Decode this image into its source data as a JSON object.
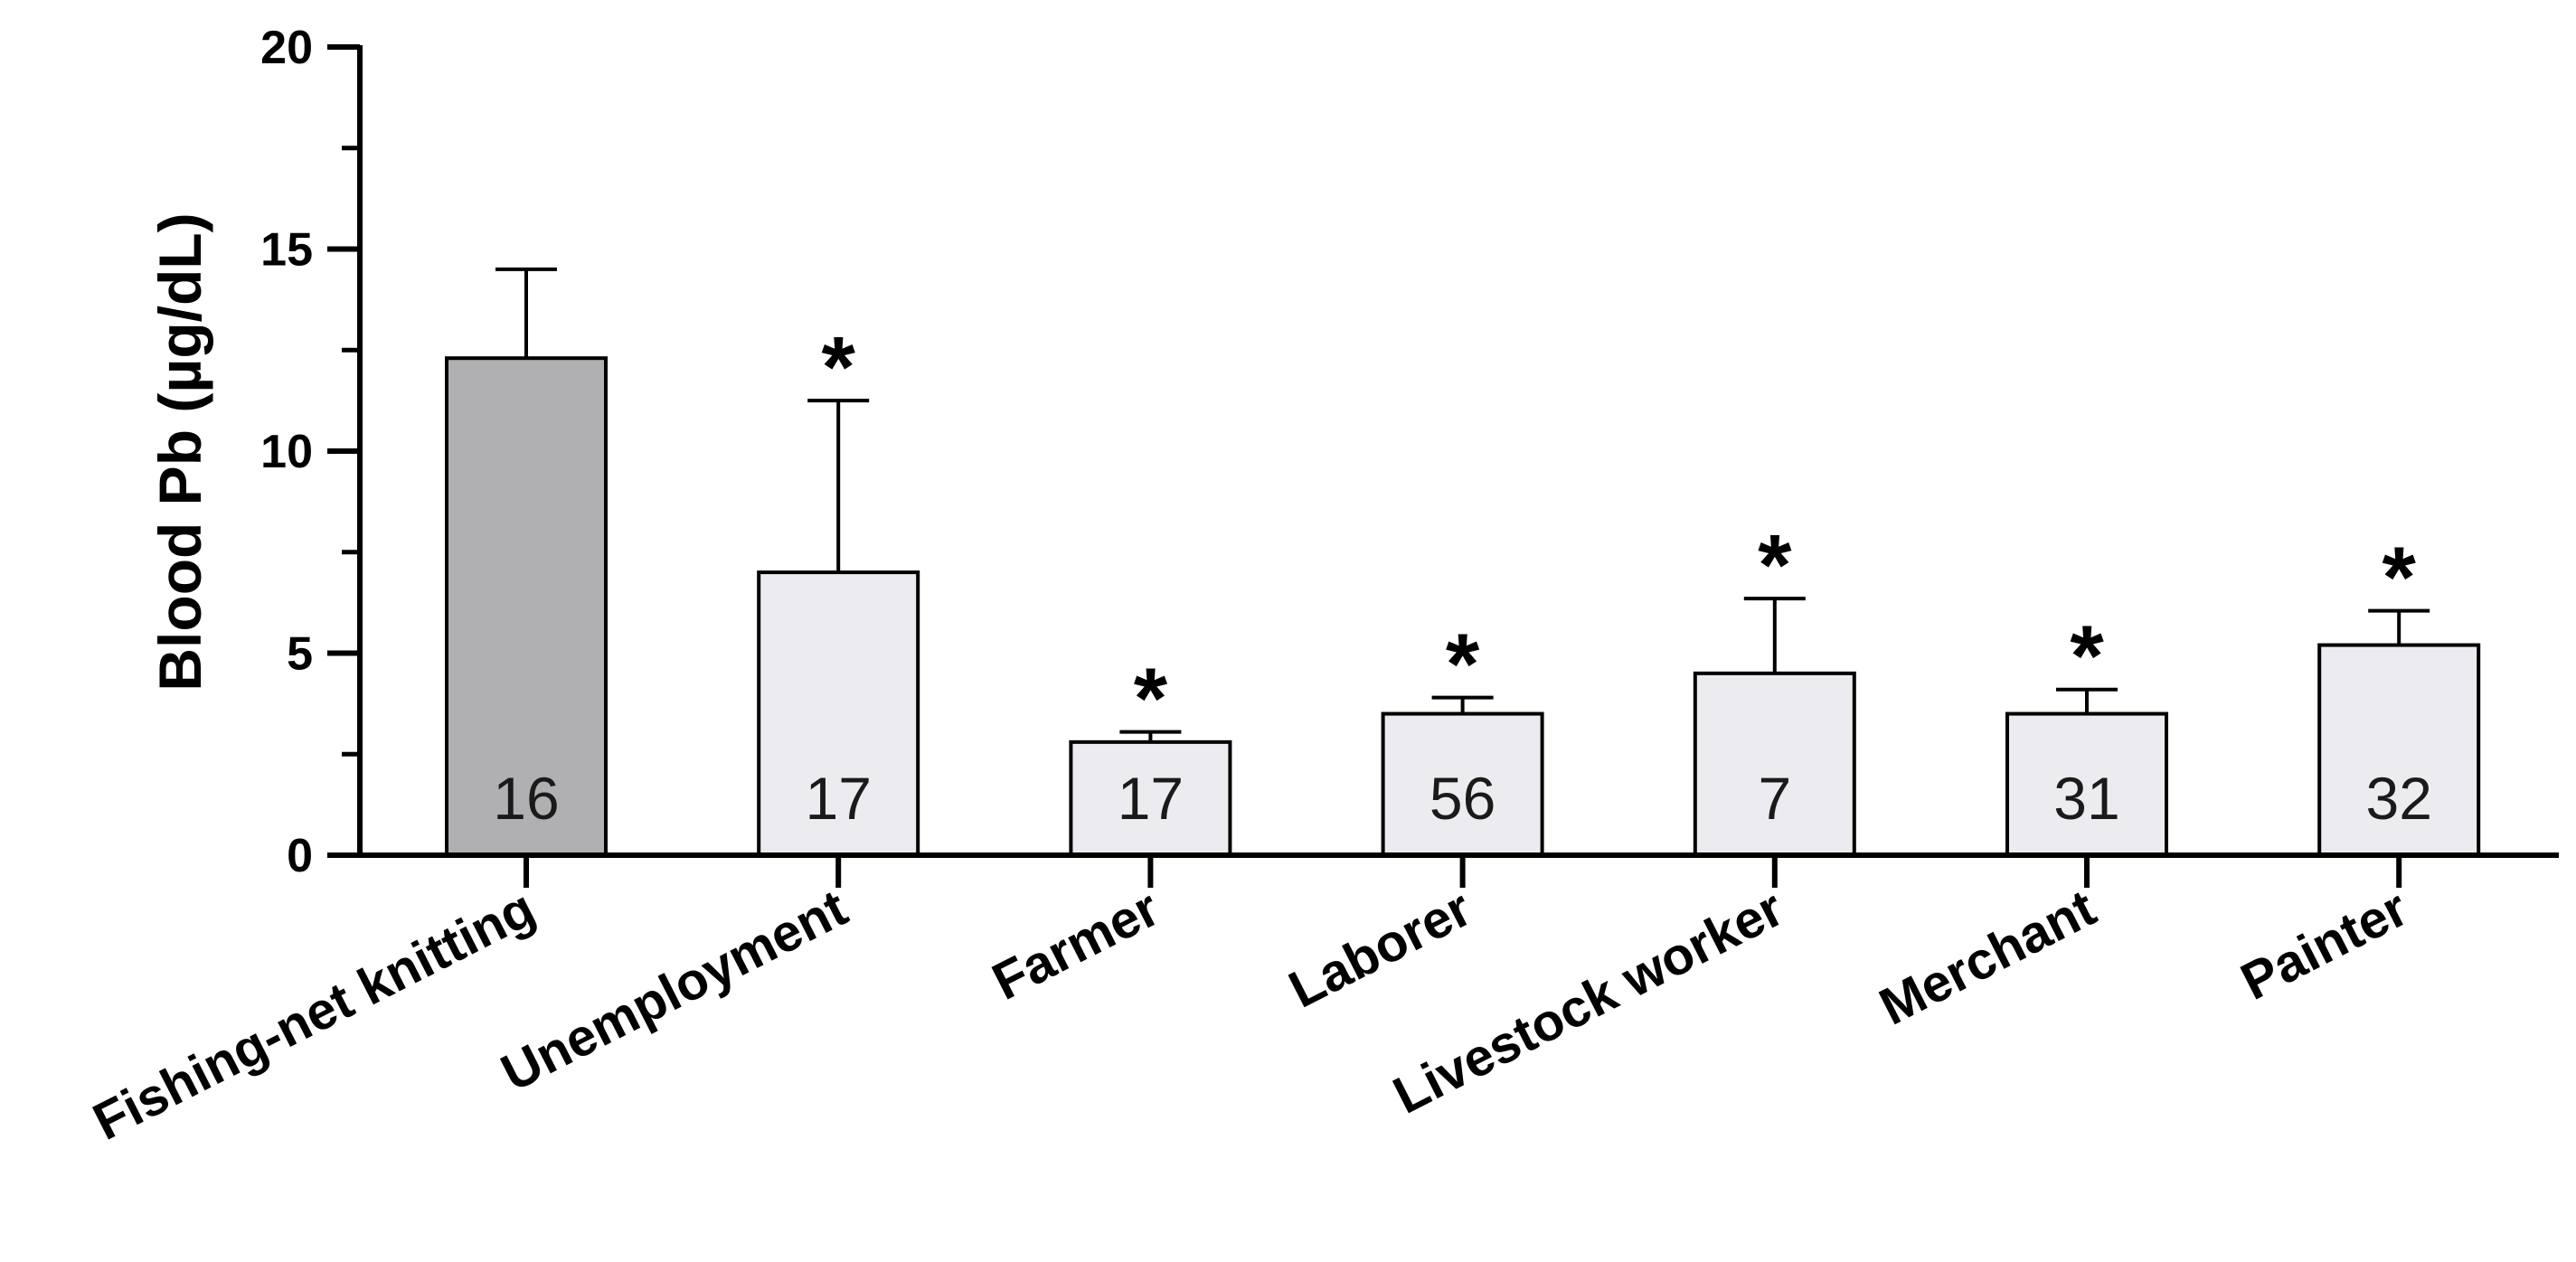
{
  "chart_data": {
    "type": "bar",
    "title": "",
    "xlabel": "",
    "ylabel": "Blood Pb (µg/dL)",
    "ylim": [
      0,
      20
    ],
    "yticks": [
      0,
      5,
      10,
      15,
      20
    ],
    "yticks_labels": [
      "0",
      "5",
      "10",
      "15",
      "20"
    ],
    "grid": false,
    "categories": [
      "Fishing-net knitting",
      "Unemployment",
      "Farmer",
      "Laborer",
      "Livestock worker",
      "Merchant",
      "Painter"
    ],
    "values": [
      12.3,
      7.0,
      2.8,
      3.5,
      4.5,
      3.5,
      5.2
    ],
    "error_upper": [
      14.5,
      11.25,
      3.05,
      3.9,
      6.35,
      4.1,
      6.05
    ],
    "n_labels": [
      "16",
      "17",
      "17",
      "56",
      "7",
      "31",
      "32"
    ],
    "significance": [
      "",
      "*",
      "*",
      "*",
      "*",
      "*",
      "*"
    ],
    "colors": {
      "reference_bar": "#b0b0b2",
      "other_bars": "#ececf0",
      "outline": "#000000"
    }
  }
}
